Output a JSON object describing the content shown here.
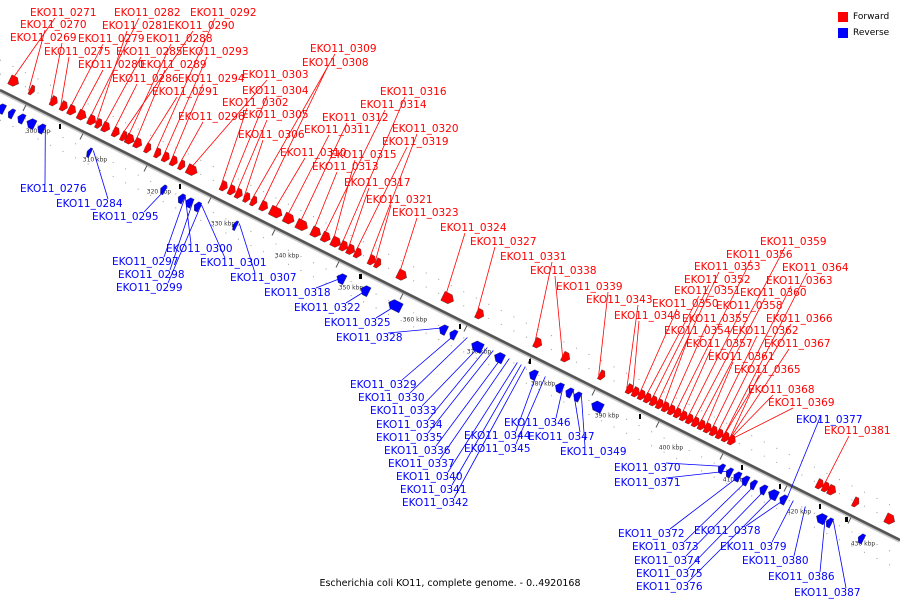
{
  "caption": "Escherichia coli KO11, complete genome. - 0..4920168",
  "legend": {
    "forward_label": "Forward",
    "forward_color": "#ff0000",
    "reverse_label": "Reverse",
    "reverse_color": "#0000ff"
  },
  "ticks": [
    "300 kbp",
    "310 kbp",
    "320 kbp",
    "330 kbp",
    "340 kbp",
    "350 kbp",
    "360 kbp",
    "370 kbp",
    "380 kbp",
    "390 kbp",
    "400 kbp",
    "410 kbp",
    "420 kbp",
    "430 kbp"
  ],
  "forward_genes": [
    "EKO11_0271",
    "EKO11_0270",
    "EKO11_0269",
    "EKO11_0275",
    "EKO11_0279",
    "EKO11_0280",
    "EKO11_0282",
    "EKO11_0281",
    "EKO11_0285",
    "EKO11_0286",
    "EKO11_0290",
    "EKO11_0288",
    "EKO11_0289",
    "EKO11_0291",
    "EKO11_0292",
    "EKO11_0293",
    "EKO11_0294",
    "EKO11_0296",
    "EKO11_0303",
    "EKO11_0302",
    "EKO11_0304",
    "EKO11_0305",
    "EKO11_0306",
    "EKO11_0309",
    "EKO11_0308",
    "EKO11_0310",
    "EKO11_0311",
    "EKO11_0312",
    "EKO11_0313",
    "EKO11_0314",
    "EKO11_0315",
    "EKO11_0316",
    "EKO11_0317",
    "EKO11_0319",
    "EKO11_0320",
    "EKO11_0321",
    "EKO11_0323",
    "EKO11_0324",
    "EKO11_0327",
    "EKO11_0331",
    "EKO11_0338",
    "EKO11_0339",
    "EKO11_0343",
    "EKO11_0348",
    "EKO11_0350",
    "EKO11_0351",
    "EKO11_0352",
    "EKO11_0353",
    "EKO11_0354",
    "EKO11_0355",
    "EKO11_0356",
    "EKO11_0357",
    "EKO11_0358",
    "EKO11_0359",
    "EKO11_0360",
    "EKO11_0361",
    "EKO11_0362",
    "EKO11_0363",
    "EKO11_0364",
    "EKO11_0365",
    "EKO11_0366",
    "EKO11_0367",
    "EKO11_0368",
    "EKO11_0369",
    "EKO11_0381"
  ],
  "reverse_genes": [
    "EKO11_0276",
    "EKO11_0284",
    "EKO11_0295",
    "EKO11_0297",
    "EKO11_0298",
    "EKO11_0299",
    "EKO11_0300",
    "EKO11_0301",
    "EKO11_0307",
    "EKO11_0318",
    "EKO11_0322",
    "EKO11_0325",
    "EKO11_0328",
    "EKO11_0329",
    "EKO11_0330",
    "EKO11_0333",
    "EKO11_0334",
    "EKO11_0335",
    "EKO11_0336",
    "EKO11_0337",
    "EKO11_0340",
    "EKO11_0341",
    "EKO11_0342",
    "EKO11_0344",
    "EKO11_0345",
    "EKO11_0346",
    "EKO11_0347",
    "EKO11_0349",
    "EKO11_0370",
    "EKO11_0371",
    "EKO11_0372",
    "EKO11_0373",
    "EKO11_0374",
    "EKO11_0375",
    "EKO11_0376",
    "EKO11_0377",
    "EKO11_0378",
    "EKO11_0379",
    "EKO11_0380",
    "EKO11_0386",
    "EKO11_0387"
  ]
}
